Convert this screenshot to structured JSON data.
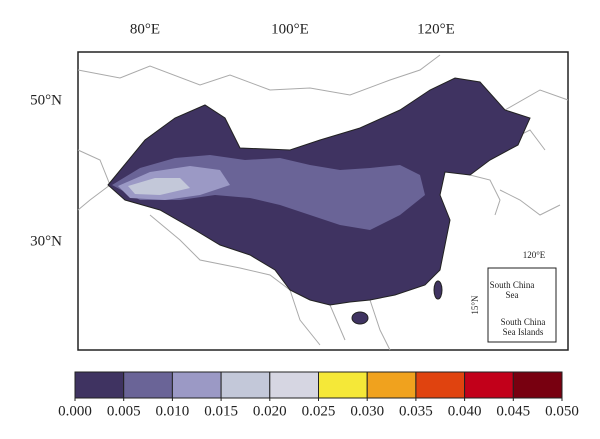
{
  "map": {
    "lon_labels": [
      "80°E",
      "100°E",
      "120°E"
    ],
    "lat_labels": [
      "50°N",
      "30°N"
    ],
    "inset": {
      "lon_label": "120°E",
      "lat_label": "15°N",
      "sea_label": [
        "South China",
        "Sea"
      ],
      "islands_label": [
        "South China",
        "Sea Islands"
      ]
    }
  },
  "colorbar": {
    "colors": [
      "#3f3361",
      "#6a6497",
      "#9b99c5",
      "#c3c8d9",
      "#d6d6e2",
      "#f5e838",
      "#f0a21e",
      "#e0430f",
      "#c2001a",
      "#780010"
    ],
    "ticks": [
      {
        "value": 0,
        "label": "0.000"
      },
      {
        "value": 0.005,
        "label": "0.005"
      },
      {
        "value": 0.01,
        "label": "0.010"
      },
      {
        "value": 0.015,
        "label": "0.015"
      },
      {
        "value": 0.02,
        "label": "0.020"
      },
      {
        "value": 0.025,
        "label": "0.025"
      },
      {
        "value": 0.03,
        "label": "0.030"
      },
      {
        "value": 0.035,
        "label": "0.035"
      },
      {
        "value": 0.04,
        "label": "0.040"
      },
      {
        "value": 0.045,
        "label": "0.045"
      },
      {
        "value": 0.05,
        "label": "0.050"
      }
    ]
  }
}
